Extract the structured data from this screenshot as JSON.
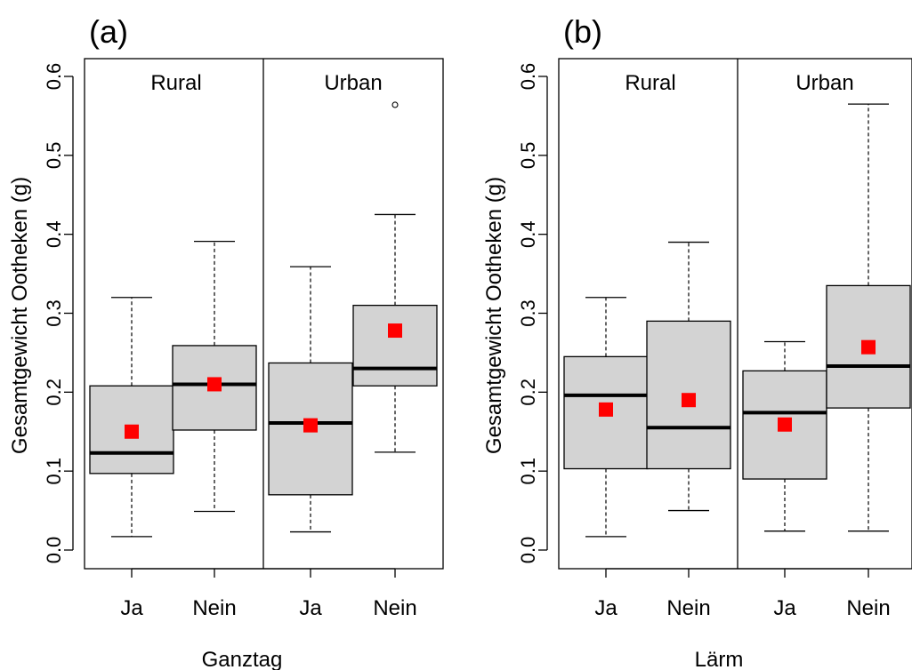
{
  "chart_data": [
    {
      "type": "box",
      "panel_label": "(a)",
      "ylabel": "Gesamtgewicht Ootheken (g)",
      "xlabel": "Ganztag",
      "ylim": [
        0,
        0.6
      ],
      "yticks": [
        "0.0",
        "0.1",
        "0.2",
        "0.3",
        "0.4",
        "0.5",
        "0.6"
      ],
      "groups": [
        {
          "name": "Rural",
          "boxes": [
            {
              "category": "Ja",
              "whisker_low": 0.017,
              "q1": 0.097,
              "median": 0.123,
              "q3": 0.208,
              "whisker_high": 0.32,
              "mean": 0.15,
              "outliers": []
            },
            {
              "category": "Nein",
              "whisker_low": 0.049,
              "q1": 0.152,
              "median": 0.21,
              "q3": 0.259,
              "whisker_high": 0.391,
              "mean": 0.21,
              "outliers": []
            }
          ]
        },
        {
          "name": "Urban",
          "boxes": [
            {
              "category": "Ja",
              "whisker_low": 0.023,
              "q1": 0.07,
              "median": 0.161,
              "q3": 0.237,
              "whisker_high": 0.359,
              "mean": 0.158,
              "outliers": []
            },
            {
              "category": "Nein",
              "whisker_low": 0.124,
              "q1": 0.208,
              "median": 0.23,
              "q3": 0.31,
              "whisker_high": 0.425,
              "mean": 0.278,
              "outliers": [
                0.564
              ]
            }
          ]
        }
      ],
      "mean_marker_color": "#ff0000",
      "box_fill": "#d3d3d3"
    },
    {
      "type": "box",
      "panel_label": "(b)",
      "ylabel": "Gesamtgewicht Ootheken (g)",
      "xlabel": "Lärm",
      "ylim": [
        0,
        0.6
      ],
      "yticks": [
        "0.0",
        "0.1",
        "0.2",
        "0.3",
        "0.4",
        "0.5",
        "0.6"
      ],
      "groups": [
        {
          "name": "Rural",
          "boxes": [
            {
              "category": "Ja",
              "whisker_low": 0.017,
              "q1": 0.103,
              "median": 0.196,
              "q3": 0.245,
              "whisker_high": 0.32,
              "mean": 0.178,
              "outliers": []
            },
            {
              "category": "Nein",
              "whisker_low": 0.05,
              "q1": 0.103,
              "median": 0.155,
              "q3": 0.29,
              "whisker_high": 0.39,
              "mean": 0.19,
              "outliers": []
            }
          ]
        },
        {
          "name": "Urban",
          "boxes": [
            {
              "category": "Ja",
              "whisker_low": 0.024,
              "q1": 0.09,
              "median": 0.174,
              "q3": 0.227,
              "whisker_high": 0.264,
              "mean": 0.159,
              "outliers": []
            },
            {
              "category": "Nein",
              "whisker_low": 0.024,
              "q1": 0.18,
              "median": 0.233,
              "q3": 0.335,
              "whisker_high": 0.565,
              "mean": 0.257,
              "outliers": []
            }
          ]
        }
      ],
      "mean_marker_color": "#ff0000",
      "box_fill": "#d3d3d3"
    }
  ]
}
